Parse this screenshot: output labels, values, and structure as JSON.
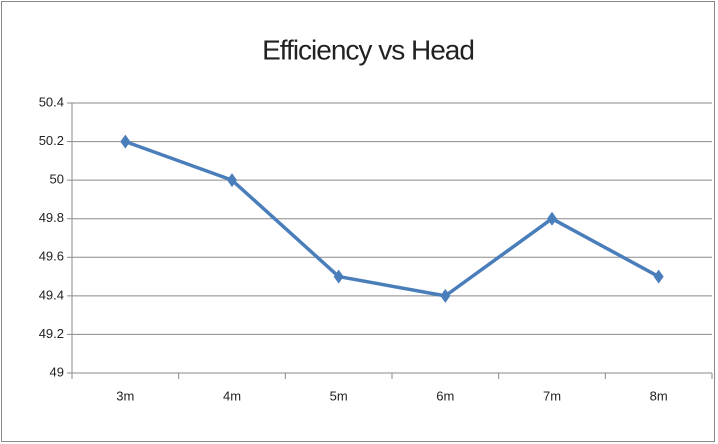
{
  "chart_data": {
    "type": "line",
    "title": "Efficiency vs Head",
    "categories": [
      "3m",
      "4m",
      "5m",
      "6m",
      "7m",
      "8m"
    ],
    "values": [
      50.2,
      50,
      49.5,
      49.4,
      49.8,
      49.5
    ],
    "color": "#4a7ebb",
    "ylim": [
      49,
      50.4
    ],
    "yticks": [
      49,
      49.2,
      49.4,
      49.6,
      49.8,
      50,
      50.2,
      50.4
    ],
    "grid": true
  }
}
